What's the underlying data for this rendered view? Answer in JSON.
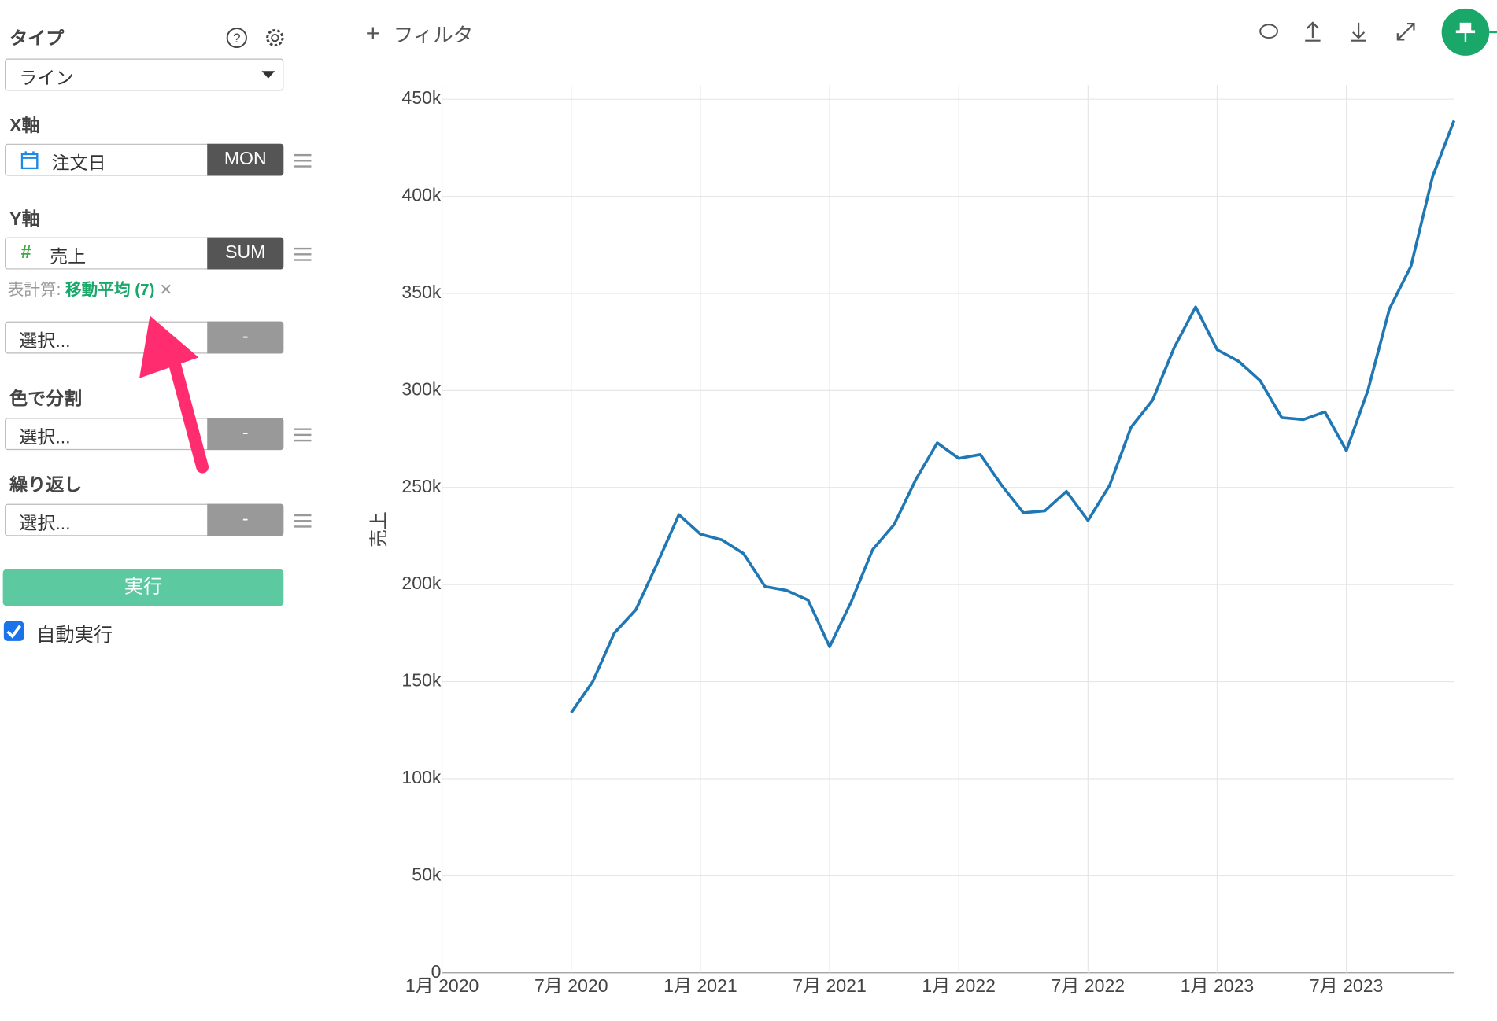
{
  "sidebar": {
    "type_label": "タイプ",
    "type_value": "ライン",
    "x_axis_label": "X軸",
    "x_field": "注文日",
    "x_agg": "MON",
    "y_axis_label": "Y軸",
    "y_field": "売上",
    "y_agg": "SUM",
    "calc_label": "表計算:",
    "calc_value": "移動平均 (7)",
    "select_placeholder": "選択...",
    "select_agg": "-",
    "color_split_label": "色で分割",
    "repeat_label": "繰り返し",
    "run_button": "実行",
    "auto_run": "自動実行"
  },
  "toolbar": {
    "filter": "フィルタ"
  },
  "chart_data": {
    "type": "line",
    "y_label": "売上",
    "color": "#1f77b4",
    "grid": true,
    "x": [
      "2020-07",
      "2020-08",
      "2020-09",
      "2020-10",
      "2020-11",
      "2020-12",
      "2021-01",
      "2021-02",
      "2021-03",
      "2021-04",
      "2021-05",
      "2021-06",
      "2021-07",
      "2021-08",
      "2021-09",
      "2021-10",
      "2021-11",
      "2021-12",
      "2022-01",
      "2022-02",
      "2022-03",
      "2022-04",
      "2022-05",
      "2022-06",
      "2022-07",
      "2022-08",
      "2022-09",
      "2022-10",
      "2022-11",
      "2022-12",
      "2023-01",
      "2023-02",
      "2023-03",
      "2023-04",
      "2023-05",
      "2023-06",
      "2023-07",
      "2023-08",
      "2023-09",
      "2023-10",
      "2023-11",
      "2023-12"
    ],
    "values": [
      134000,
      150000,
      175000,
      187000,
      211000,
      236000,
      226000,
      223000,
      216000,
      199000,
      197000,
      192000,
      168000,
      191000,
      218000,
      231000,
      254000,
      273000,
      265000,
      267000,
      251000,
      237000,
      238000,
      248000,
      233000,
      251000,
      281000,
      295000,
      322000,
      343000,
      321000,
      315000,
      305000,
      286000,
      285000,
      289000,
      269000,
      300000,
      342000,
      364000,
      410000,
      439000
    ],
    "xlim": [
      "2020-01",
      "2023-12"
    ],
    "xticks": [
      {
        "value": "2020-01",
        "label": "1月 2020"
      },
      {
        "value": "2020-07",
        "label": "7月 2020"
      },
      {
        "value": "2021-01",
        "label": "1月 2021"
      },
      {
        "value": "2021-07",
        "label": "7月 2021"
      },
      {
        "value": "2022-01",
        "label": "1月 2022"
      },
      {
        "value": "2022-07",
        "label": "7月 2022"
      },
      {
        "value": "2023-01",
        "label": "1月 2023"
      },
      {
        "value": "2023-07",
        "label": "7月 2023"
      }
    ],
    "ylim": [
      0,
      450000
    ],
    "yticks": [
      0,
      {
        "value": 50000,
        "label": "50k"
      },
      {
        "value": 100000,
        "label": "100k"
      },
      {
        "value": 150000,
        "label": "150k"
      },
      {
        "value": 200000,
        "label": "200k"
      },
      {
        "value": 250000,
        "label": "250k"
      },
      {
        "value": 300000,
        "label": "300k"
      },
      {
        "value": 350000,
        "label": "350k"
      },
      {
        "value": 400000,
        "label": "400k"
      },
      {
        "value": 450000,
        "label": "450k"
      }
    ]
  }
}
